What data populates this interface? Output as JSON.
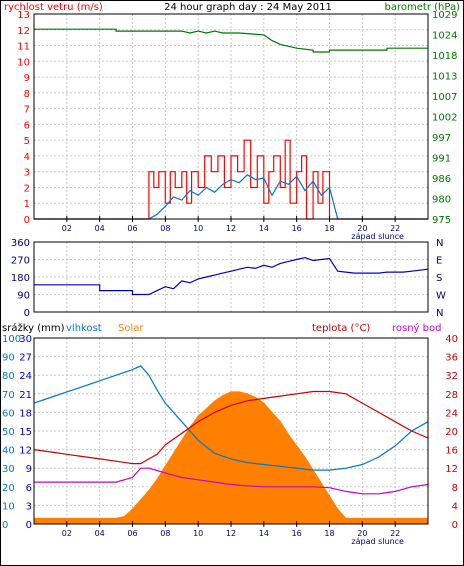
{
  "chart_data": [
    {
      "type": "line",
      "title": "24 hour graph day : 24 May 2011",
      "ylabel_left": "rychlost vetru (m/s)",
      "ylabel_right": "barometr (hPa)",
      "xlim": [
        0,
        24
      ],
      "x_ticks": [
        "02",
        "04",
        "06",
        "08",
        "10",
        "12",
        "14",
        "16",
        "18",
        "20",
        "22"
      ],
      "sunset_label": "západ slunce",
      "sunset_hour": 18.5,
      "ylim_left": [
        0,
        13
      ],
      "y_ticks_left": [
        "0",
        "1",
        "2",
        "3",
        "4",
        "5",
        "6",
        "7",
        "8",
        "9",
        "10",
        "11",
        "12",
        "13"
      ],
      "ylim_right": [
        975,
        1029
      ],
      "y_ticks_right": [
        "975",
        "980",
        "986",
        "991",
        "997",
        "1002",
        "1007",
        "1013",
        "1018",
        "1024",
        "1029"
      ],
      "series": [
        {
          "axis": "right",
          "color": "#007700",
          "x": [
            0,
            5,
            5,
            9,
            9.5,
            10,
            10.5,
            11,
            11.5,
            12.5,
            14,
            14.5,
            15,
            16,
            17,
            17,
            18,
            18,
            19,
            21.5,
            21.5,
            24
          ],
          "y": [
            1025,
            1025,
            1024.5,
            1024.5,
            1024,
            1024.5,
            1024,
            1024.5,
            1024,
            1024,
            1023.5,
            1022,
            1021,
            1020,
            1019.5,
            1019,
            1019,
            1019.5,
            1019.5,
            1019.5,
            1020,
            1020
          ]
        },
        {
          "axis": "left",
          "color": "#ff0000",
          "x": [
            0,
            7,
            7,
            7.3,
            7.3,
            7.6,
            7.6,
            8,
            8,
            8.3,
            8.3,
            8.6,
            8.6,
            9,
            9,
            9.3,
            9.3,
            9.6,
            9.6,
            10,
            10,
            10.4,
            10.4,
            10.8,
            10.8,
            11.2,
            11.2,
            11.6,
            11.6,
            12,
            12,
            12.4,
            12.4,
            12.8,
            12.8,
            13.2,
            13.2,
            13.6,
            13.6,
            14,
            14,
            14.3,
            14.3,
            14.6,
            14.6,
            15,
            15,
            15.3,
            15.3,
            15.6,
            15.6,
            16,
            16,
            16.3,
            16.3,
            16.6,
            16.6,
            17,
            17,
            17.3,
            17.3,
            17.6,
            17.6,
            18,
            18,
            18.5,
            24
          ],
          "y": [
            0,
            0,
            3,
            3,
            2,
            2,
            3,
            3,
            1,
            1,
            3,
            3,
            2,
            2,
            3,
            3,
            1,
            1,
            3,
            3,
            2,
            2,
            4,
            4,
            3,
            3,
            4,
            4,
            2,
            2,
            4,
            4,
            3,
            3,
            5,
            5,
            2,
            2,
            4,
            4,
            1,
            1,
            3,
            3,
            4,
            4,
            2,
            2,
            5,
            5,
            1,
            1,
            3,
            3,
            4,
            4,
            0,
            0,
            3,
            3,
            1,
            1,
            3,
            3,
            0,
            0,
            0
          ]
        },
        {
          "axis": "left",
          "color": "#0077cc",
          "x": [
            0,
            7,
            7.5,
            8,
            8.5,
            9,
            9.5,
            10,
            10.5,
            11,
            11.5,
            12,
            12.5,
            13,
            13.5,
            14,
            14.5,
            15,
            15.5,
            16,
            16.5,
            17,
            17.5,
            18,
            18.5,
            24
          ],
          "y": [
            0,
            0,
            0.3,
            0.8,
            1.4,
            1.2,
            1.8,
            1.5,
            2.0,
            1.7,
            2.2,
            2.5,
            2.3,
            2.8,
            2.5,
            2.6,
            1.5,
            2.4,
            2.2,
            2.7,
            1.8,
            2.4,
            1.5,
            2.0,
            0,
            0
          ]
        }
      ]
    },
    {
      "type": "line",
      "xlim": [
        0,
        24
      ],
      "ylim": [
        0,
        360
      ],
      "y_ticks": [
        "0",
        "90",
        "180",
        "270",
        "360"
      ],
      "y_ticks_right": [
        "N",
        "W",
        "S",
        "E",
        "N"
      ],
      "series": [
        {
          "color": "#0000cc",
          "x": [
            0,
            4,
            4,
            6,
            6,
            7,
            7.5,
            8,
            8.5,
            9,
            9.5,
            10,
            10.5,
            11,
            11.5,
            12,
            12.5,
            13,
            13.5,
            14,
            14.5,
            15,
            15.5,
            16,
            16.5,
            17,
            17.5,
            18,
            18.5,
            19,
            19.5,
            20,
            20.5,
            21,
            21.5,
            22,
            22.5,
            23,
            23.5,
            24
          ],
          "y": [
            140,
            140,
            110,
            110,
            90,
            90,
            110,
            130,
            120,
            160,
            150,
            170,
            180,
            190,
            200,
            210,
            220,
            230,
            225,
            240,
            230,
            250,
            260,
            270,
            280,
            265,
            270,
            275,
            210,
            205,
            200,
            200,
            200,
            200,
            205,
            205,
            205,
            210,
            215,
            220
          ]
        }
      ]
    },
    {
      "type": "line",
      "ylabel_left_1": "srážky (mm)",
      "ylabel_left_2": "vlhkost",
      "ylabel_left_3": "Solar",
      "ylabel_right_1": "teplota (°C)",
      "ylabel_right_2": "rosný bod",
      "xlim": [
        0,
        24
      ],
      "x_ticks": [
        "02",
        "04",
        "06",
        "08",
        "10",
        "12",
        "14",
        "16",
        "18",
        "20",
        "22"
      ],
      "sunset_label": "západ slunce",
      "sunset_hour": 18.5,
      "ylim_rain": [
        0,
        30
      ],
      "y_ticks_rain": [
        "0",
        "3",
        "6",
        "9",
        "12",
        "15",
        "18",
        "21",
        "24",
        "27",
        "30"
      ],
      "ylim_humidity": [
        0,
        100
      ],
      "y_ticks_humidity": [
        "0",
        "10",
        "20",
        "30",
        "40",
        "50",
        "60",
        "70",
        "80",
        "90",
        "100"
      ],
      "ylim_temp": [
        0,
        40
      ],
      "y_ticks_temp": [
        "0",
        "4",
        "8",
        "12",
        "16",
        "20",
        "24",
        "28",
        "32",
        "36",
        "40"
      ],
      "series": [
        {
          "axis": "solar",
          "color": "#ff8000",
          "x": [
            0,
            5,
            5.5,
            6,
            6.5,
            7,
            7.5,
            8,
            8.5,
            9,
            9.5,
            10,
            10.5,
            11,
            11.5,
            12,
            12.5,
            13,
            13.5,
            14,
            14.5,
            15,
            15.5,
            16,
            16.5,
            17,
            17.5,
            18,
            18.5,
            19,
            24
          ],
          "y": [
            3,
            3,
            4,
            8,
            13,
            18,
            24,
            31,
            38,
            45,
            52,
            58,
            62,
            66,
            69,
            71,
            71,
            70,
            68,
            65,
            60,
            55,
            48,
            42,
            36,
            29,
            22,
            15,
            8,
            3,
            3
          ]
        },
        {
          "axis": "humidity",
          "color": "#0077cc",
          "x": [
            0,
            1,
            2,
            3,
            4,
            5,
            6,
            6.5,
            7,
            7.5,
            8,
            9,
            10,
            11,
            12,
            13,
            14,
            15,
            16,
            17,
            18,
            19,
            20,
            21,
            22,
            23,
            24
          ],
          "y": [
            65,
            68,
            71,
            74,
            77,
            80,
            83,
            85,
            80,
            72,
            65,
            55,
            45,
            38,
            35,
            33,
            32,
            31,
            30,
            29,
            29,
            30,
            32,
            36,
            42,
            50,
            55
          ]
        },
        {
          "axis": "temp",
          "color": "#cc0000",
          "x": [
            0,
            1,
            2,
            3,
            4,
            5,
            6,
            6.5,
            7,
            7.5,
            8,
            9,
            10,
            11,
            12,
            13,
            14,
            15,
            16,
            17,
            18,
            19,
            20,
            21,
            22,
            23,
            24
          ],
          "y": [
            16,
            15.5,
            15,
            14.5,
            14,
            13.5,
            13,
            13,
            14,
            15,
            17,
            19.5,
            22,
            24,
            25.5,
            26.5,
            27,
            27.5,
            28,
            28.5,
            28.5,
            28,
            26,
            24,
            22,
            20,
            18.5
          ]
        },
        {
          "axis": "temp",
          "color": "#cc00cc",
          "x": [
            0,
            1,
            2,
            3,
            4,
            5,
            6,
            6.5,
            7,
            7.5,
            8,
            9,
            10,
            11,
            12,
            13,
            14,
            15,
            16,
            17,
            18,
            19,
            20,
            21,
            22,
            23,
            24
          ],
          "y": [
            9,
            9,
            9,
            9,
            9,
            9,
            10,
            12,
            12,
            11.5,
            11,
            10,
            9.5,
            9,
            8.5,
            8.2,
            8,
            8,
            8,
            8,
            7.8,
            7,
            6.5,
            6.5,
            7,
            8,
            8.5
          ]
        }
      ]
    }
  ]
}
